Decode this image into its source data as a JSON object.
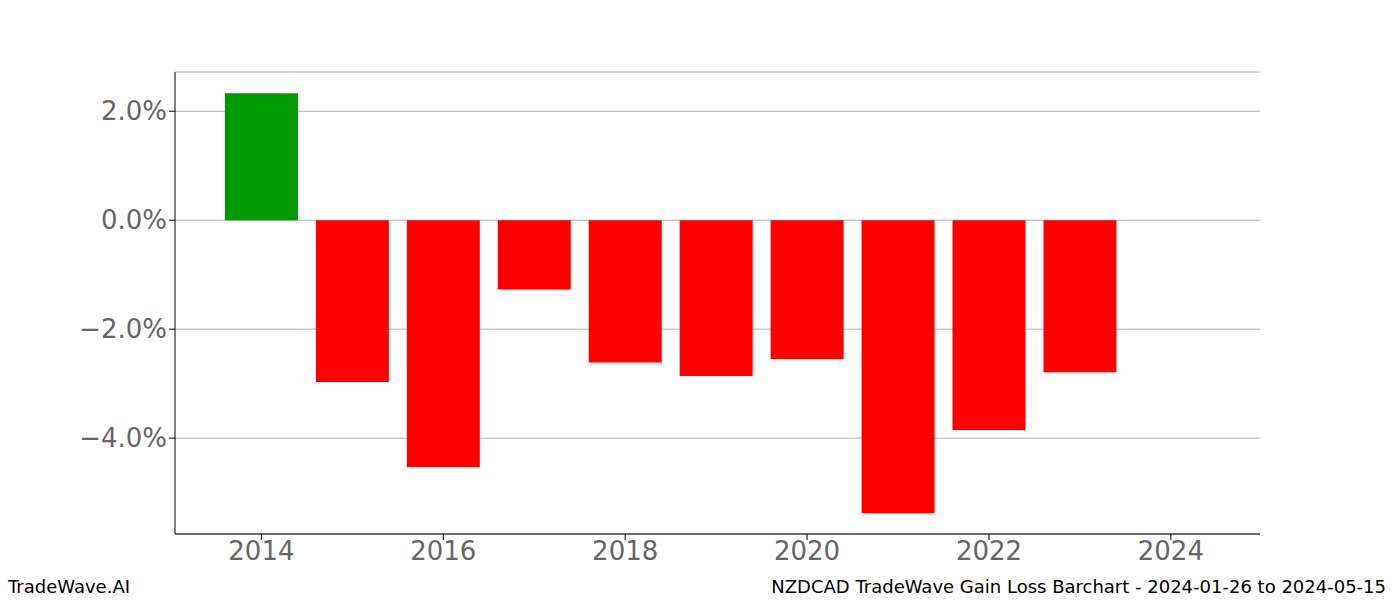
{
  "chart_data": {
    "type": "bar",
    "title": "NZDCAD TradeWave Gain Loss Barchart - 2024-01-26 to 2024-05-15",
    "annotations": [
      "TradeWave.AI"
    ],
    "x": [
      2014,
      2015,
      2016,
      2017,
      2018,
      2019,
      2020,
      2021,
      2022,
      2023
    ],
    "values": [
      2.33,
      -2.97,
      -4.53,
      -1.27,
      -2.61,
      -2.86,
      -2.55,
      -5.38,
      -3.85,
      -2.79
    ],
    "colors": [
      "#009900",
      "#ff0000",
      "#ff0000",
      "#ff0000",
      "#ff0000",
      "#ff0000",
      "#ff0000",
      "#ff0000",
      "#ff0000",
      "#ff0000"
    ],
    "xlim": [
      2013.05,
      2024.98
    ],
    "xticks": [
      2014,
      2016,
      2018,
      2020,
      2022,
      2024
    ],
    "ylim": [
      -5.76,
      2.72
    ],
    "yticks": [
      {
        "value": -4,
        "label": "−4.0%"
      },
      {
        "value": -2,
        "label": "−2.0%"
      },
      {
        "value": 0,
        "label": "0.0%"
      },
      {
        "value": 2,
        "label": "2.0%"
      }
    ],
    "grid": true
  }
}
